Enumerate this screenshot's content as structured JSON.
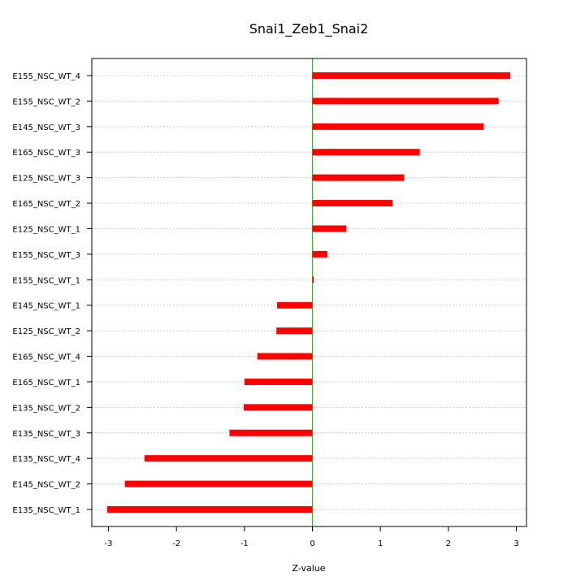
{
  "chart_data": {
    "type": "bar",
    "orientation": "horizontal",
    "title": "Snai1_Zeb1_Snai2",
    "xlabel": "Z-value",
    "ylabel": "",
    "xlim": [
      -3.0,
      3.0
    ],
    "x_ticks": [
      -3,
      -2,
      -1,
      0,
      1,
      2,
      3
    ],
    "x_tick_labels": [
      "-3",
      "-2",
      "-1",
      "0",
      "1",
      "2",
      "3"
    ],
    "grid": "horizontal dotted lines at each category",
    "zero_line": true,
    "categories": [
      "E155_NSC_WT_4",
      "E155_NSC_WT_2",
      "E145_NSC_WT_3",
      "E165_NSC_WT_3",
      "E125_NSC_WT_3",
      "E165_NSC_WT_2",
      "E125_NSC_WT_1",
      "E155_NSC_WT_3",
      "E155_NSC_WT_1",
      "E145_NSC_WT_1",
      "E125_NSC_WT_2",
      "E165_NSC_WT_4",
      "E165_NSC_WT_1",
      "E135_NSC_WT_2",
      "E135_NSC_WT_3",
      "E135_NSC_WT_4",
      "E145_NSC_WT_2",
      "E135_NSC_WT_1"
    ],
    "values": [
      2.91,
      2.74,
      2.52,
      1.58,
      1.35,
      1.18,
      0.5,
      0.22,
      0.02,
      -0.52,
      -0.53,
      -0.81,
      -1.0,
      -1.01,
      -1.22,
      -2.47,
      -2.76,
      -3.02
    ],
    "colors": {
      "bar": "#ff0000",
      "zero_line": "#00dd00",
      "grid": "#c8c8c8",
      "axis": "#000000"
    }
  }
}
